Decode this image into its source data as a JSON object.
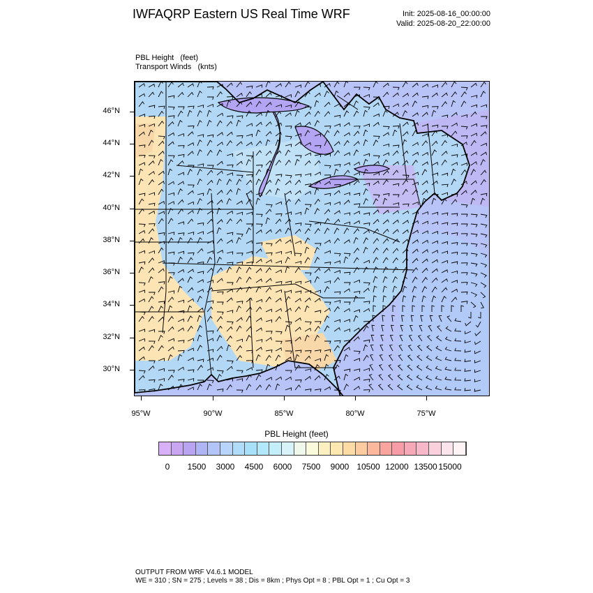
{
  "header": {
    "title": "IWFAQRP Eastern US Real Time WRF",
    "init": "Init: 2025-08-16_00:00:00",
    "valid": "Valid: 2025-08-20_22:00:00"
  },
  "fields": {
    "field1_name": "PBL Height",
    "field1_unit": "(feet)",
    "field2_name": "Transport Winds",
    "field2_unit": "(knts)"
  },
  "axes": {
    "lat_labels": [
      "46°N",
      "44°N",
      "42°N",
      "40°N",
      "38°N",
      "36°N",
      "34°N",
      "32°N",
      "30°N"
    ],
    "lon_labels": [
      "95°W",
      "90°W",
      "85°W",
      "80°W",
      "75°W"
    ]
  },
  "colorbar": {
    "title": "PBL Height  (feet)",
    "labels": [
      "0",
      "1500",
      "3000",
      "4500",
      "6000",
      "7500",
      "9000",
      "10500",
      "12000",
      "13500",
      "15000"
    ],
    "colors": [
      "#d8b0f8",
      "#c8a6f2",
      "#b8a4f0",
      "#aeb4f4",
      "#b2c4f8",
      "#b8d4fa",
      "#b0dcfa",
      "#a8e0fa",
      "#b2e8fa",
      "#c4eefa",
      "#d8f2fa",
      "#f0f8ec",
      "#fafadc",
      "#fcf0c0",
      "#fce8b0",
      "#fcdca4",
      "#fccca0",
      "#fcb89c",
      "#faa4a0",
      "#f89ca8",
      "#f4a8b8",
      "#f6b8c8",
      "#fad0dc",
      "#fce4ec",
      "#fef4f6"
    ]
  },
  "footer": {
    "line1": "OUTPUT FROM WRF V4.6.1 MODEL",
    "line2": "WE = 310 ; SN = 275 ; Levels = 38 ; Dis = 8km ; Phys Opt = 8 ; PBL Opt = 1 ; Cu Opt = 3"
  },
  "map": {
    "region": "Eastern United States",
    "land_colors": [
      "#b2d8f6",
      "#c4e4f8",
      "#a8cdf4",
      "#fce4b4",
      "#f8d8a8"
    ],
    "water_colors": [
      "#b8c4f8",
      "#c0b4f4",
      "#b0b8f6"
    ],
    "lake_color": "#b4a4f4"
  }
}
